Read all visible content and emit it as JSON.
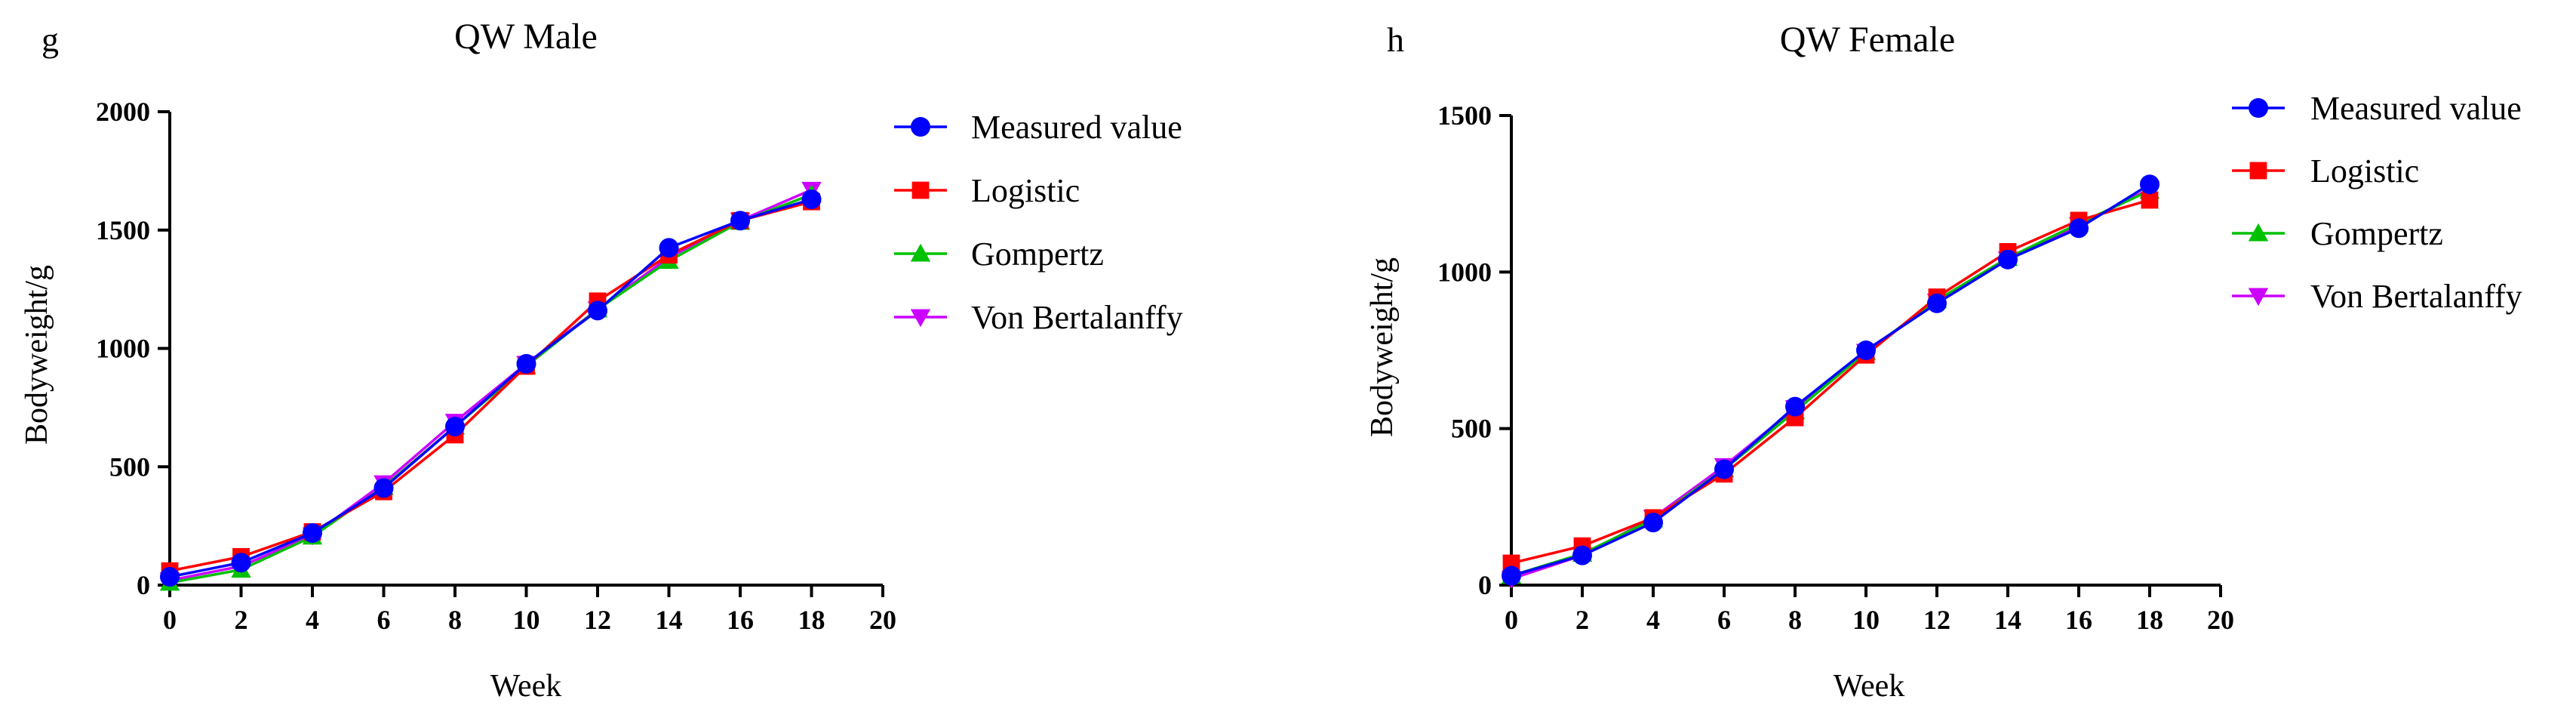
{
  "panels": [
    {
      "letter": "g",
      "title": "QW Male",
      "xlabel": "Week",
      "ylabel": "Bodyweight/g"
    },
    {
      "letter": "h",
      "title": "QW Female",
      "xlabel": "Week",
      "ylabel": "Bodyweight/g"
    }
  ],
  "colors": {
    "measured": "#0000FF",
    "logistic": "#FF0000",
    "gompertz": "#00C000",
    "von_bertalanffy": "#CC00FF"
  },
  "chart_data": [
    {
      "type": "line",
      "title": "QW Male",
      "xlabel": "Week",
      "ylabel": "Bodyweight/g",
      "xlim": [
        0,
        20
      ],
      "ylim": [
        0,
        2000
      ],
      "xticks": [
        0,
        2,
        4,
        6,
        8,
        10,
        12,
        14,
        16,
        18,
        20
      ],
      "yticks": [
        0,
        500,
        1000,
        1500,
        2000
      ],
      "legend_position": "right",
      "x": [
        0,
        2,
        4,
        6,
        8,
        10,
        12,
        14,
        16,
        18
      ],
      "series": [
        {
          "name": "Measured value",
          "marker": "circle",
          "color": "#0000FF",
          "values": [
            35,
            95,
            220,
            410,
            670,
            935,
            1160,
            1425,
            1540,
            1630
          ]
        },
        {
          "name": "Logistic",
          "marker": "square",
          "color": "#FF0000",
          "values": [
            60,
            120,
            225,
            395,
            635,
            925,
            1200,
            1395,
            1540,
            1620
          ]
        },
        {
          "name": "Gompertz",
          "marker": "triangle-up",
          "color": "#00C000",
          "values": [
            10,
            65,
            205,
            415,
            670,
            925,
            1165,
            1370,
            1535,
            1650
          ]
        },
        {
          "name": "Von Bertalanffy",
          "marker": "triangle-down",
          "color": "#CC00FF",
          "values": [
            20,
            80,
            210,
            430,
            690,
            935,
            1165,
            1385,
            1540,
            1670
          ]
        }
      ]
    },
    {
      "type": "line",
      "title": "QW Female",
      "xlabel": "Week",
      "ylabel": "Bodyweight/g",
      "xlim": [
        0,
        20
      ],
      "ylim": [
        0,
        1500
      ],
      "xticks": [
        0,
        2,
        4,
        6,
        8,
        10,
        12,
        14,
        16,
        18,
        20
      ],
      "yticks": [
        0,
        500,
        1000,
        1500
      ],
      "legend_position": "right",
      "x": [
        0,
        2,
        4,
        6,
        8,
        10,
        12,
        14,
        16,
        18
      ],
      "series": [
        {
          "name": "Measured value",
          "marker": "circle",
          "color": "#0000FF",
          "values": [
            30,
            95,
            200,
            370,
            570,
            750,
            900,
            1040,
            1140,
            1280
          ]
        },
        {
          "name": "Logistic",
          "marker": "square",
          "color": "#FF0000",
          "values": [
            70,
            125,
            215,
            355,
            535,
            735,
            920,
            1065,
            1165,
            1230
          ]
        },
        {
          "name": "Gompertz",
          "marker": "triangle-up",
          "color": "#00C000",
          "values": [
            30,
            100,
            210,
            370,
            555,
            745,
            910,
            1045,
            1155,
            1260
          ]
        },
        {
          "name": "Von Bertalanffy",
          "marker": "triangle-down",
          "color": "#CC00FF",
          "values": [
            20,
            95,
            215,
            380,
            565,
            745,
            905,
            1040,
            1150,
            1265
          ]
        }
      ]
    }
  ]
}
